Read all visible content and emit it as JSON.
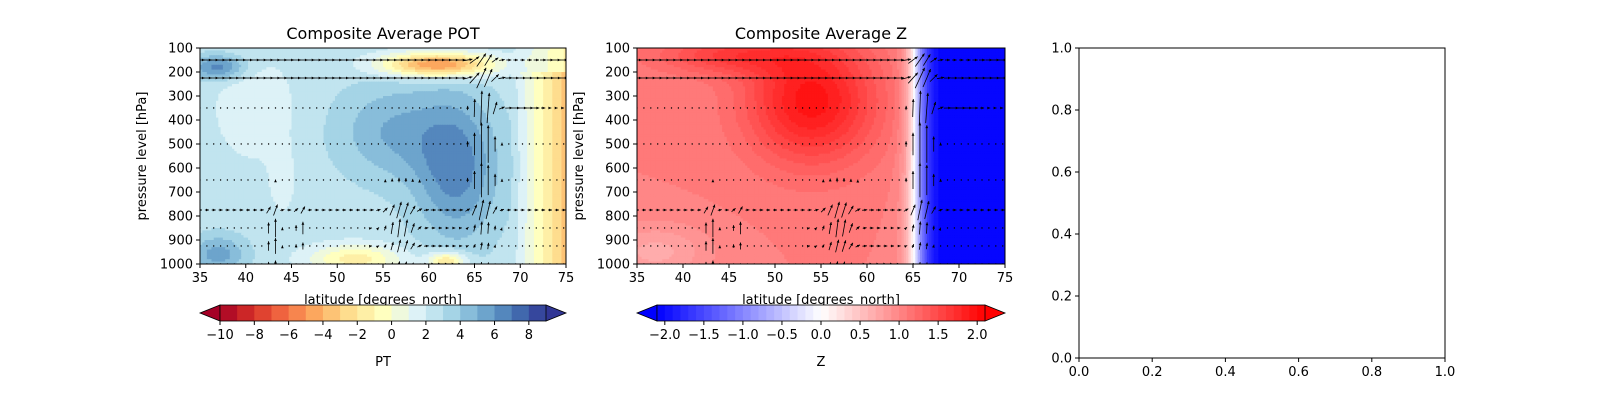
{
  "chart_data": [
    {
      "type": "heatmap",
      "title": "Composite Average POT",
      "xlabel": "latitude [degrees_north]",
      "ylabel": "pressure level [hPa]",
      "xlim": [
        35,
        75
      ],
      "ylim": [
        1000,
        100
      ],
      "xticks": [
        "35",
        "40",
        "45",
        "50",
        "55",
        "60",
        "65",
        "70",
        "75"
      ],
      "yticks": [
        "100",
        "200",
        "300",
        "400",
        "500",
        "600",
        "700",
        "800",
        "900",
        "1000"
      ],
      "colormap": "RdYlBu",
      "colorbar": {
        "label": "PT",
        "ticks": [
          "−10",
          "−8",
          "−6",
          "−4",
          "−2",
          "0",
          "2",
          "4",
          "6",
          "8"
        ],
        "range": [
          -10,
          9
        ],
        "extend": "both"
      },
      "overlay": "wind vectors (quiver)"
    },
    {
      "type": "heatmap",
      "title": "Composite Average Z",
      "xlabel": "latitude [degrees_north]",
      "ylabel": "pressure level [hPa]",
      "xlim": [
        35,
        75
      ],
      "ylim": [
        1000,
        100
      ],
      "xticks": [
        "35",
        "40",
        "45",
        "50",
        "55",
        "60",
        "65",
        "70",
        "75"
      ],
      "yticks": [
        "100",
        "200",
        "300",
        "400",
        "500",
        "600",
        "700",
        "800",
        "900",
        "1000"
      ],
      "colormap": "bwr",
      "colorbar": {
        "label": "Z",
        "ticks": [
          "−2.0",
          "−1.5",
          "−1.0",
          "−0.5",
          "0.0",
          "0.5",
          "1.0",
          "1.5",
          "2.0"
        ],
        "range": [
          -2.1,
          2.1
        ],
        "extend": "both"
      },
      "overlay": "wind vectors (quiver)"
    },
    {
      "type": "scatter",
      "title": "",
      "xlim": [
        0,
        1
      ],
      "ylim": [
        0,
        1
      ],
      "xticks": [
        "0.0",
        "0.2",
        "0.4",
        "0.6",
        "0.8",
        "1.0"
      ],
      "yticks": [
        "0.0",
        "0.2",
        "0.4",
        "0.6",
        "0.8",
        "1.0"
      ],
      "series": []
    }
  ]
}
